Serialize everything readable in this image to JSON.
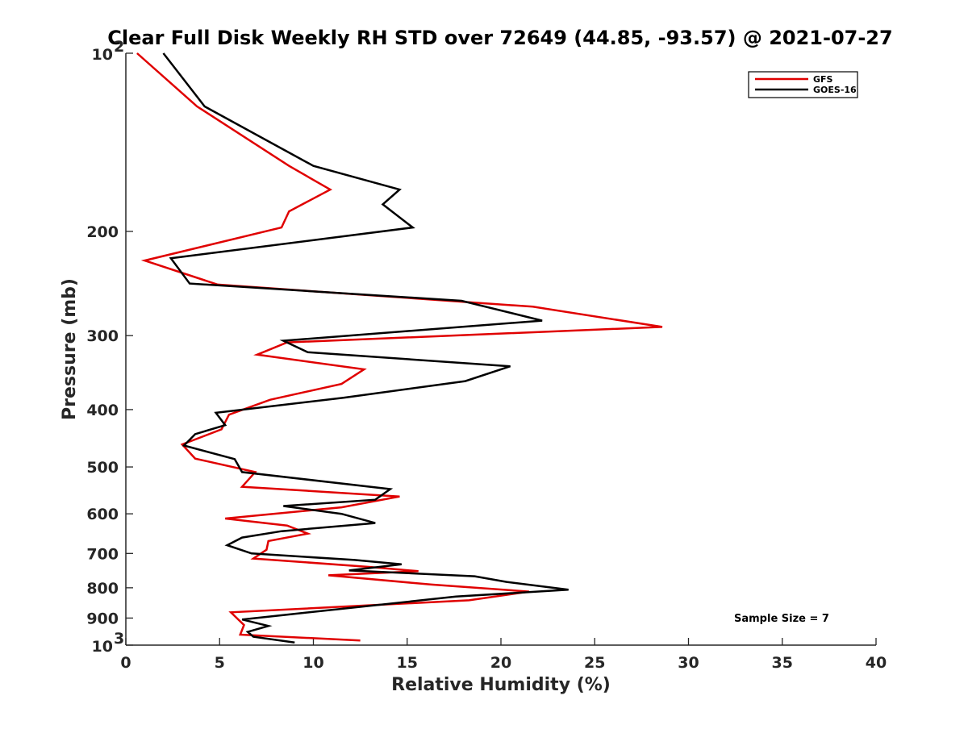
{
  "chart_data": {
    "type": "line",
    "title": "Clear Full Disk Weekly RH STD over 72649 (44.85, -93.57) @ 2021-07-27",
    "xlabel": "Relative Humidity (%)",
    "ylabel": "Pressure (mb)",
    "xlim": [
      0,
      40
    ],
    "ylim": [
      100,
      1000
    ],
    "y_scale": "log",
    "y_reversed": true,
    "x_ticks": [
      "0",
      "5",
      "10",
      "15",
      "20",
      "25",
      "30",
      "35",
      "40"
    ],
    "y_ticks": [
      {
        "value": 100,
        "label": "10",
        "exponent": "2"
      },
      {
        "value": 200,
        "label": "200",
        "exponent": ""
      },
      {
        "value": 300,
        "label": "300",
        "exponent": ""
      },
      {
        "value": 400,
        "label": "400",
        "exponent": ""
      },
      {
        "value": 500,
        "label": "500",
        "exponent": ""
      },
      {
        "value": 600,
        "label": "600",
        "exponent": ""
      },
      {
        "value": 700,
        "label": "700",
        "exponent": ""
      },
      {
        "value": 800,
        "label": "800",
        "exponent": ""
      },
      {
        "value": 900,
        "label": "900",
        "exponent": ""
      },
      {
        "value": 1000,
        "label": "10",
        "exponent": "3"
      }
    ],
    "legend_position": "top-right",
    "grid": false,
    "annotation": "Sample Size = 7",
    "series": [
      {
        "name": "GFS",
        "color": "#e00000",
        "x": [
          0.6,
          3.8,
          8.7,
          10.9,
          8.7,
          8.3,
          1.0,
          4.9,
          21.7,
          28.6,
          8.6,
          7.0,
          12.7,
          11.5,
          7.7,
          5.5,
          5.1,
          3.0,
          3.7,
          6.9,
          6.2,
          14.6,
          11.5,
          5.3,
          8.6,
          9.7,
          7.6,
          7.5,
          6.8,
          13.1,
          15.6,
          10.8,
          16.3,
          21.5,
          18.3,
          5.6,
          6.3,
          6.1,
          12.5
        ],
        "y": [
          100,
          123,
          155,
          170,
          185,
          197,
          224,
          246,
          268,
          290,
          308,
          323,
          342,
          362,
          385,
          408,
          432,
          458,
          484,
          510,
          540,
          561,
          585,
          611,
          628,
          648,
          667,
          690,
          714,
          738,
          750,
          762,
          790,
          812,
          840,
          880,
          925,
          960,
          982
        ]
      },
      {
        "name": "GOES-16",
        "color": "#000000",
        "x": [
          2.0,
          4.2,
          10.0,
          14.6,
          13.7,
          15.3,
          2.4,
          3.4,
          17.9,
          22.2,
          8.4,
          9.7,
          20.5,
          18.1,
          11.6,
          4.8,
          5.3,
          3.7,
          3.1,
          5.8,
          6.2,
          14.1,
          13.3,
          8.4,
          11.5,
          13.3,
          8.3,
          6.2,
          5.4,
          6.7,
          12.2,
          14.7,
          11.9,
          18.6,
          20.3,
          23.6,
          17.6,
          6.2,
          7.6,
          6.5,
          6.8,
          9.0
        ],
        "y": [
          100,
          123,
          155,
          170,
          180,
          197,
          222,
          245,
          262,
          283,
          306,
          320,
          338,
          358,
          382,
          405,
          425,
          440,
          460,
          485,
          510,
          545,
          568,
          582,
          600,
          622,
          642,
          658,
          678,
          700,
          718,
          730,
          748,
          765,
          782,
          806,
          828,
          905,
          928,
          950,
          968,
          990
        ]
      }
    ]
  }
}
